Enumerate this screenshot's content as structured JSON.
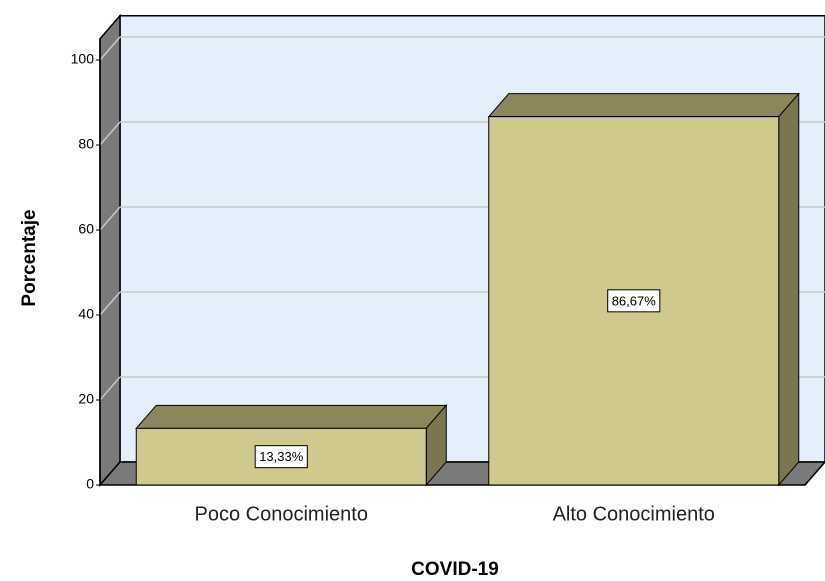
{
  "chart_data": {
    "type": "bar3d",
    "categories": [
      "Poco Conocimiento",
      "Alto Conocimiento"
    ],
    "values": [
      13.33,
      86.67
    ],
    "value_labels": [
      "13,33%",
      "86,67%"
    ],
    "color": "#cfc98e",
    "xlabel": "COVID-19",
    "ylabel": "Porcentaje",
    "ylim": [
      0,
      105
    ],
    "yticks": [
      0,
      20,
      40,
      60,
      80,
      100
    ],
    "grid": true
  }
}
